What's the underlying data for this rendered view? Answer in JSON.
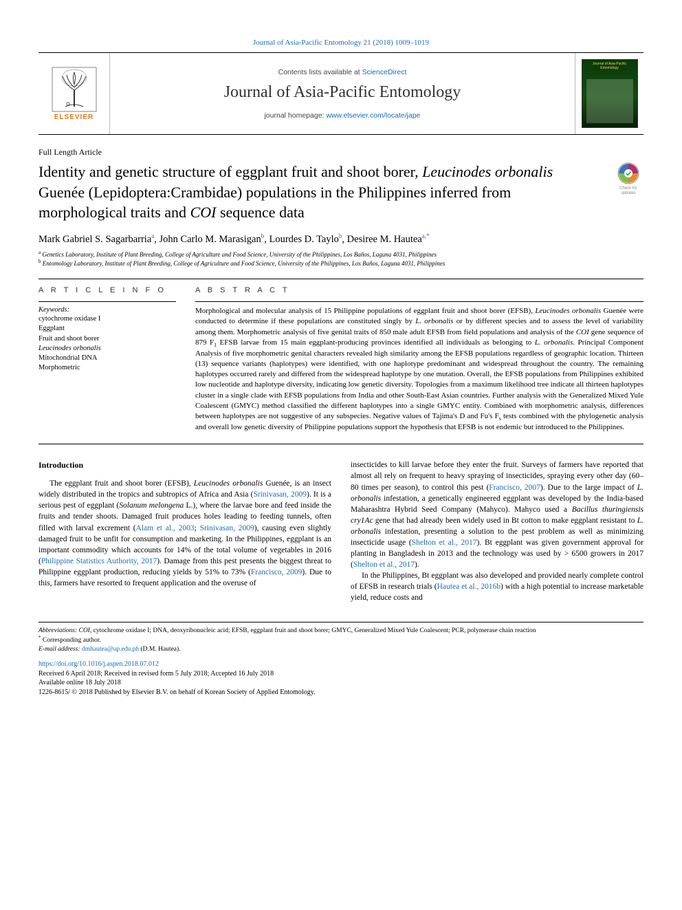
{
  "colors": {
    "link": "#1a6bb8",
    "elsevier_orange": "#e67817",
    "cover_bg_top": "#0a3a0a",
    "cover_bg_bottom": "#061f06",
    "cover_title": "#f4d34b",
    "text": "#000000",
    "muted": "#444444"
  },
  "typography": {
    "body_font": "Georgia, 'Times New Roman', serif",
    "sans_font": "Arial, sans-serif",
    "title_fontsize": 22,
    "journal_fontsize": 24,
    "authors_fontsize": 14.5,
    "abstract_fontsize": 11,
    "body_fontsize": 11.5,
    "footnote_fontsize": 9.5
  },
  "header": {
    "running_head": "Journal of Asia-Pacific Entomology 21 (2018) 1009–1019",
    "contents_line_prefix": "Contents lists available at ",
    "contents_line_link": "ScienceDirect",
    "journal_name": "Journal of Asia-Pacific Entomology",
    "homepage_prefix": "journal homepage: ",
    "homepage_link": "www.elsevier.com/locate/jape",
    "elsevier_word": "ELSEVIER",
    "cover_thumb_title": "Journal of Asia-Pacific Entomology"
  },
  "article": {
    "type": "Full Length Article",
    "title_plain_before": "Identity and genetic structure of eggplant fruit and shoot borer, ",
    "title_ital1": "Leucinodes orbonalis",
    "title_mid": " Guenée (Lepidoptera:Crambidae) populations in the Philippines inferred from morphological traits and ",
    "title_ital2": "COI",
    "title_after": " sequence data",
    "check_updates": "Check for updates"
  },
  "authors": {
    "list": "Mark Gabriel S. Sagarbarria",
    "a1_sup": "a",
    "a2": ", John Carlo M. Marasigan",
    "a2_sup": "b",
    "a3": ", Lourdes D. Taylo",
    "a3_sup": "b",
    "a4": ", Desiree M. Hautea",
    "a4_sup": "a,*"
  },
  "affiliations": {
    "a": "Genetics Laboratory, Institute of Plant Breeding, College of Agriculture and Food Science, University of the Philippines, Los Baños, Laguna 4031, Philippines",
    "b": "Entomology Laboratory, Institute of Plant Breeding, College of Agriculture and Food Science, University of the Philippines, Los Baños, Laguna 4031, Philippines"
  },
  "info": {
    "head": "A R T I C L E  I N F O",
    "keywords_label": "Keywords:",
    "keywords": [
      "cytochrome oxidase I",
      "Eggplant",
      "Fruit and shoot borer",
      "Leucinodes orbonalis",
      "Mitochondrial DNA",
      "Morphometric"
    ],
    "keywords_italic_index": 3
  },
  "abstract": {
    "head": "A B S T R A C T",
    "text_parts": [
      {
        "t": "Morphological and molecular analysis of 15 Philippine populations of eggplant fruit and shoot borer (EFSB), "
      },
      {
        "t": "Leucinodes orbonalis",
        "i": true
      },
      {
        "t": " Guenée were conducted to determine if these populations are constituted singly by "
      },
      {
        "t": "L. orbonalis",
        "i": true
      },
      {
        "t": " or by different species and to assess the level of variability among them. Morphometric analysis of five genital traits of 850 male adult EFSB from field populations and analysis of the "
      },
      {
        "t": "COI",
        "i": true
      },
      {
        "t": " gene sequence of 879 F"
      },
      {
        "t": "1",
        "sub": true
      },
      {
        "t": " EFSB larvae from 15 main eggplant-producing provinces identified all individuals as belonging to "
      },
      {
        "t": "L. orbonalis",
        "i": true
      },
      {
        "t": ". Principal Component Analysis of five morphometric genital characters revealed high similarity among the EFSB populations regardless of geographic location. Thirteen (13) sequence variants (haplotypes) were identified, with one haplotype predominant and widespread throughout the country. The remaining haplotypes occurred rarely and differed from the widespread haplotype by one mutation. Overall, the EFSB populations from Philippines exhibited low nucleotide and haplotype diversity, indicating low genetic diversity. Topologies from a maximum likelihood tree indicate all thirteen haplotypes cluster in a single clade with EFSB populations from India and other South-East Asian countries. Further analysis with the Generalized Mixed Yule Coalescent (GMYC) method classified the different haplotypes into a single GMYC entity. Combined with morphometric analysis, differences between haplotypes are not suggestive of any subspecies. Negative values of Tajima's D and Fu's F"
      },
      {
        "t": "s",
        "sub": true
      },
      {
        "t": " tests combined with the phylogenetic analysis and overall low genetic diversity of Philippine populations support the hypothesis that EFSB is not endemic but introduced to the Philippines."
      }
    ]
  },
  "body": {
    "section_head": "Introduction",
    "col1_parts": [
      {
        "t": "The eggplant fruit and shoot borer (EFSB), "
      },
      {
        "t": "Leucinodes orbonalis",
        "i": true
      },
      {
        "t": " Guenée, is an insect widely distributed in the tropics and subtropics of Africa and Asia ("
      },
      {
        "t": "Srinivasan, 2009",
        "link": true
      },
      {
        "t": "). It is a serious pest of eggplant ("
      },
      {
        "t": "Solanum melongena",
        "i": true
      },
      {
        "t": " L.), where the larvae bore and feed inside the fruits and tender shoots. Damaged fruit produces holes leading to feeding tunnels, often filled with larval excrement ("
      },
      {
        "t": "Alam et al., 2003",
        "link": true
      },
      {
        "t": "; "
      },
      {
        "t": "Srinivasan, 2009",
        "link": true
      },
      {
        "t": "), causing even slightly damaged fruit to be unfit for consumption and marketing. In the Philippines, eggplant is an important commodity which accounts for 14% of the total volume of vegetables in 2016 ("
      },
      {
        "t": "Philippine Statistics Authority, 2017",
        "link": true
      },
      {
        "t": "). Damage from this pest presents the biggest threat to Philippine eggplant production, reducing yields by 51% to 73% ("
      },
      {
        "t": "Francisco, 2009",
        "link": true
      },
      {
        "t": "). Due to this, farmers have resorted to frequent application and the overuse of"
      }
    ],
    "col2_p1_parts": [
      {
        "t": "insecticides to kill larvae before they enter the fruit. Surveys of farmers have reported that almost all rely on frequent to heavy spraying of insecticides, spraying every other day (60–80 times per season), to control this pest ("
      },
      {
        "t": "Francisco, 2007",
        "link": true
      },
      {
        "t": "). Due to the large impact of "
      },
      {
        "t": "L. orbonalis",
        "i": true
      },
      {
        "t": " infestation, a genetically engineered eggplant was developed by the India-based Maharashtra Hybrid Seed Company (Mahyco). Mahyco used a "
      },
      {
        "t": "Bacillus thuringiensis cry1Ac",
        "i": true
      },
      {
        "t": " gene that had already been widely used in Bt cotton to make eggplant resistant to "
      },
      {
        "t": "L. orbonalis",
        "i": true
      },
      {
        "t": " infestation, presenting a solution to the pest problem as well as minimizing insecticide usage ("
      },
      {
        "t": "Shelton et al., 2017",
        "link": true
      },
      {
        "t": "). Bt eggplant was given government approval for planting in Bangladesh in 2013 and the technology was used by > 6500 growers in 2017 ("
      },
      {
        "t": "Shelton et al., 2017",
        "link": true
      },
      {
        "t": ")."
      }
    ],
    "col2_p2_parts": [
      {
        "t": "In the Philippines, Bt eggplant was also developed and provided nearly complete control of EFSB in research trials ("
      },
      {
        "t": "Hautea et al., 2016b",
        "link": true
      },
      {
        "t": ") with a high potential to increase marketable yield, reduce costs and"
      }
    ]
  },
  "footnotes": {
    "abbrev_label": "Abbreviations:",
    "abbrev_text": " COI, cytochrome oxidase I; DNA, deoxyribonucleic acid; EFSB, eggplant fruit and shoot borer; GMYC, Generalized Mixed Yule Coalescent; PCR, polymerase chain reaction",
    "corr": "Corresponding author.",
    "email_label": "E-mail address: ",
    "email": "dmhautea@up.edu.ph",
    "email_paren": " (D.M. Hautea)."
  },
  "doi_block": {
    "doi": "https://doi.org/10.1016/j.aspen.2018.07.012",
    "received": "Received 6 April 2018; Received in revised form 5 July 2018; Accepted 16 July 2018",
    "online": "Available online 18 July 2018",
    "issn": "1226-8615/ © 2018 Published by Elsevier B.V. on behalf of Korean Society of Applied Entomology."
  }
}
